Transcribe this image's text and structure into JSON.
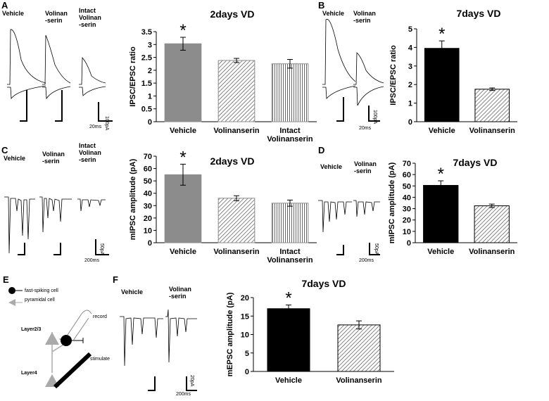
{
  "chart_data": [
    {
      "type": "bar",
      "title": "2days VD",
      "ylabel": "IPSC/EPSC ratio",
      "categories": [
        "Vehicle",
        "Volinanserin",
        "Intact\nVolinanserin"
      ],
      "values": [
        3.03,
        2.38,
        2.25
      ],
      "errors": [
        0.25,
        0.08,
        0.17
      ],
      "colors": [
        "#8c8c8c",
        "#8c8c8c",
        "#8c8c8c"
      ],
      "bar_styles": [
        "solid",
        "hatch",
        "vlines"
      ],
      "ylim": [
        0,
        3.5
      ],
      "yticks": [
        0,
        0.5,
        1,
        1.5,
        2,
        2.5,
        3,
        3.5
      ],
      "annotation": "*"
    },
    {
      "type": "bar",
      "title": "7days VD",
      "ylabel": "IPSC/EPSC ratio",
      "categories": [
        "Vehicle",
        "Volinanserin"
      ],
      "values": [
        3.95,
        1.75
      ],
      "errors": [
        0.4,
        0.07
      ],
      "colors": [
        "#000000",
        "#000000"
      ],
      "bar_styles": [
        "solid",
        "hatch"
      ],
      "ylim": [
        0,
        5
      ],
      "yticks": [
        0,
        1,
        2,
        3,
        4,
        5
      ],
      "annotation": "*"
    },
    {
      "type": "bar",
      "title": "2days VD",
      "ylabel": "mIPSC amplitude (pA)",
      "categories": [
        "Vehicle",
        "Volinanserin",
        "Intact\nVolinanserin"
      ],
      "values": [
        55,
        36,
        32
      ],
      "errors": [
        8.5,
        2,
        2.5
      ],
      "colors": [
        "#8c8c8c",
        "#8c8c8c",
        "#8c8c8c"
      ],
      "bar_styles": [
        "solid",
        "hatch",
        "vlines"
      ],
      "ylim": [
        0,
        70
      ],
      "yticks": [
        0,
        10,
        20,
        30,
        40,
        50,
        60,
        70
      ],
      "annotation": "*"
    },
    {
      "type": "bar",
      "title": "7days VD",
      "ylabel": "mIPSC amplitude (pA)",
      "categories": [
        "Vehicle",
        "Volinanserin"
      ],
      "values": [
        50.5,
        32.5
      ],
      "errors": [
        4,
        1.5
      ],
      "colors": [
        "#000000",
        "#000000"
      ],
      "bar_styles": [
        "solid",
        "hatch"
      ],
      "ylim": [
        0,
        70
      ],
      "yticks": [
        0,
        10,
        20,
        30,
        40,
        50,
        60,
        70
      ],
      "annotation": "*"
    },
    {
      "type": "bar",
      "title": "7days VD",
      "ylabel": "mEPSC amplitude (pA)",
      "categories": [
        "Vehicle",
        "Volinanserin"
      ],
      "values": [
        17,
        12.6
      ],
      "errors": [
        1,
        1.1
      ],
      "colors": [
        "#000000",
        "#000000"
      ],
      "bar_styles": [
        "solid",
        "hatch"
      ],
      "ylim": [
        0,
        20
      ],
      "yticks": [
        0,
        5,
        10,
        15,
        20
      ],
      "annotation": "*"
    }
  ],
  "figure_labels": [
    "A",
    "Vehicle",
    "Volinan\n-serin",
    "Intact\nVolinan\n-serin",
    "100pA",
    "20ms",
    "B",
    "Vehicle",
    "Volinan\n-serin",
    "100pA",
    "20ms",
    "C",
    "Vehicle",
    "Volinan\n-serin",
    "Intact\nVolinan\n-serin",
    "50pA",
    "200ms",
    "D",
    "Vehicle",
    "Volinan\n-serin",
    "50pA",
    "200ms",
    "E",
    "fast-spiking cell",
    "pyramidal cell",
    "record",
    "Layer2/3",
    "Layer4",
    "stimulate",
    "F",
    "Vehicle",
    "Volinan\n-serin",
    "20pA",
    "200ms"
  ]
}
